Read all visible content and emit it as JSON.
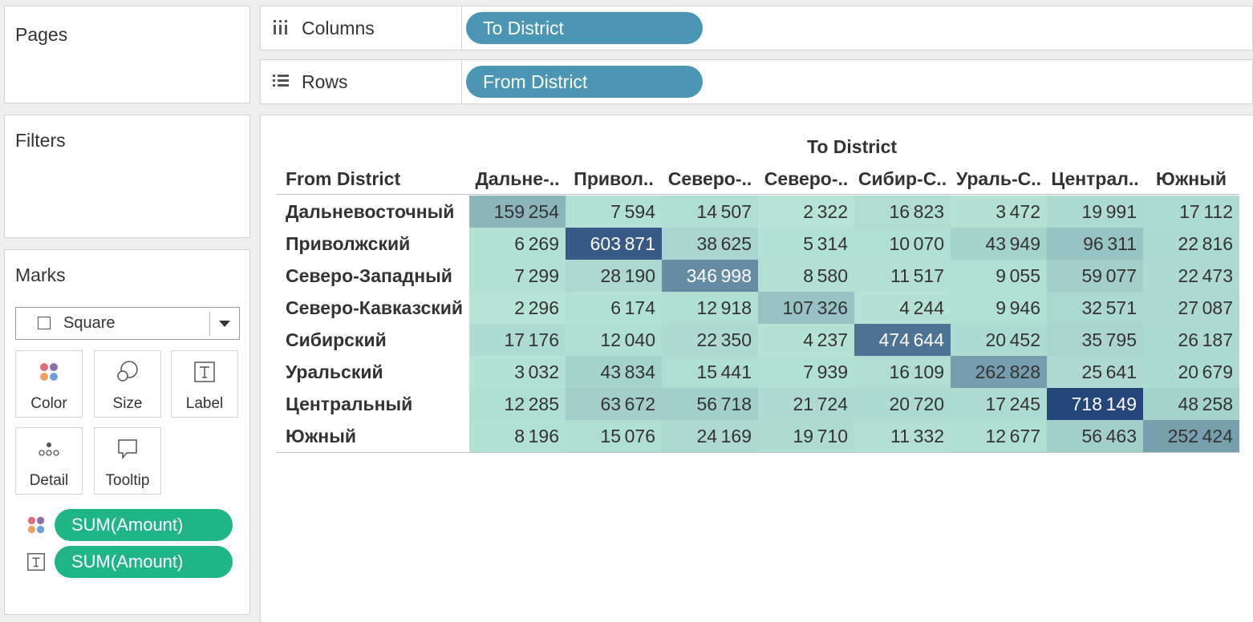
{
  "panels": {
    "pages_title": "Pages",
    "filters_title": "Filters",
    "marks_title": "Marks"
  },
  "shelves": {
    "columns_label": "Columns",
    "columns_pill": "To District",
    "rows_label": "Rows",
    "rows_pill": "From District"
  },
  "marks": {
    "type": "Square",
    "buttons": {
      "color": "Color",
      "size": "Size",
      "label": "Label",
      "detail": "Detail",
      "tooltip": "Tooltip"
    },
    "color_pill": "SUM(Amount)",
    "label_pill": "SUM(Amount)"
  },
  "viz": {
    "column_header": "To District",
    "row_header": "From District",
    "columns": [
      "Дальне-..",
      "Привол..",
      "Северо-..",
      "Северо-..",
      "Сибир-С..",
      "Ураль-С..",
      "Централ..",
      "Южный"
    ],
    "rows": [
      "Дальневосточный",
      "Приволжский",
      "Северо-Западный",
      "Северо-Кавказский",
      "Сибирский",
      "Уральский",
      "Центральный",
      "Южный"
    ]
  },
  "chart_data": {
    "type": "heatmap",
    "title": "",
    "xlabel": "To District",
    "ylabel": "From District",
    "x": [
      "Дальне-..",
      "Привол..",
      "Северо-..",
      "Северо-..",
      "Сибир-С..",
      "Ураль-С..",
      "Централ..",
      "Южный"
    ],
    "y": [
      "Дальневосточный",
      "Приволжский",
      "Северо-Западный",
      "Северо-Кавказский",
      "Сибирский",
      "Уральский",
      "Центральный",
      "Южный"
    ],
    "values": [
      [
        159254,
        7594,
        14507,
        2322,
        16823,
        3472,
        19991,
        17112
      ],
      [
        6269,
        603871,
        38625,
        5314,
        10070,
        43949,
        96311,
        22816
      ],
      [
        7299,
        28190,
        346998,
        8580,
        11517,
        9055,
        59077,
        22473
      ],
      [
        2296,
        6174,
        12918,
        107326,
        4244,
        9946,
        32571,
        27087
      ],
      [
        17176,
        12040,
        22350,
        4237,
        474644,
        20452,
        35795,
        26187
      ],
      [
        3032,
        43834,
        15441,
        7939,
        16109,
        262828,
        25641,
        20679
      ],
      [
        12285,
        63672,
        56718,
        21724,
        20720,
        17245,
        718149,
        48258
      ],
      [
        8196,
        15076,
        24169,
        19710,
        11332,
        12677,
        56463,
        252424
      ]
    ],
    "color_low": "#b6e3d6",
    "color_high": "#24467a"
  }
}
